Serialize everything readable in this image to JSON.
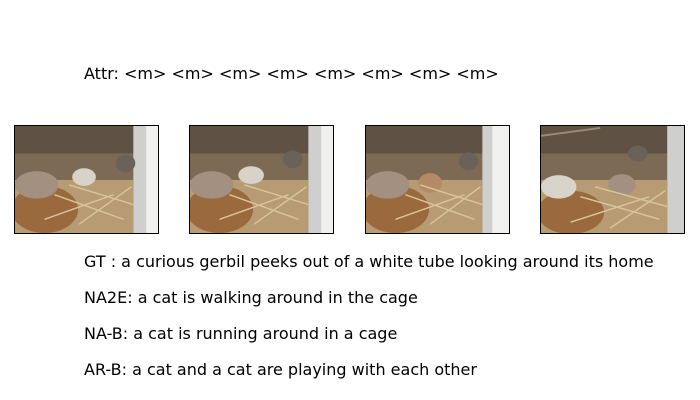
{
  "attr": {
    "label": "Attr:",
    "tokens": "<m> <m> <m> <m> <m> <m> <m> <m>"
  },
  "frames": [
    "gerbil-cage-frame-1",
    "gerbil-cage-frame-2",
    "gerbil-cage-frame-3",
    "gerbil-cage-frame-4"
  ],
  "captions": {
    "gt": {
      "label": "GT  :",
      "text": "a curious gerbil peeks out of a white tube looking around its home"
    },
    "na2e": {
      "label": "NA2E:",
      "text": "a cat is walking around in the cage"
    },
    "nab": {
      "label": "NA-B:",
      "text": "a cat is running around in a cage"
    },
    "arb": {
      "label": "AR-B:",
      "text": "a cat and a cat are playing with each other"
    }
  }
}
